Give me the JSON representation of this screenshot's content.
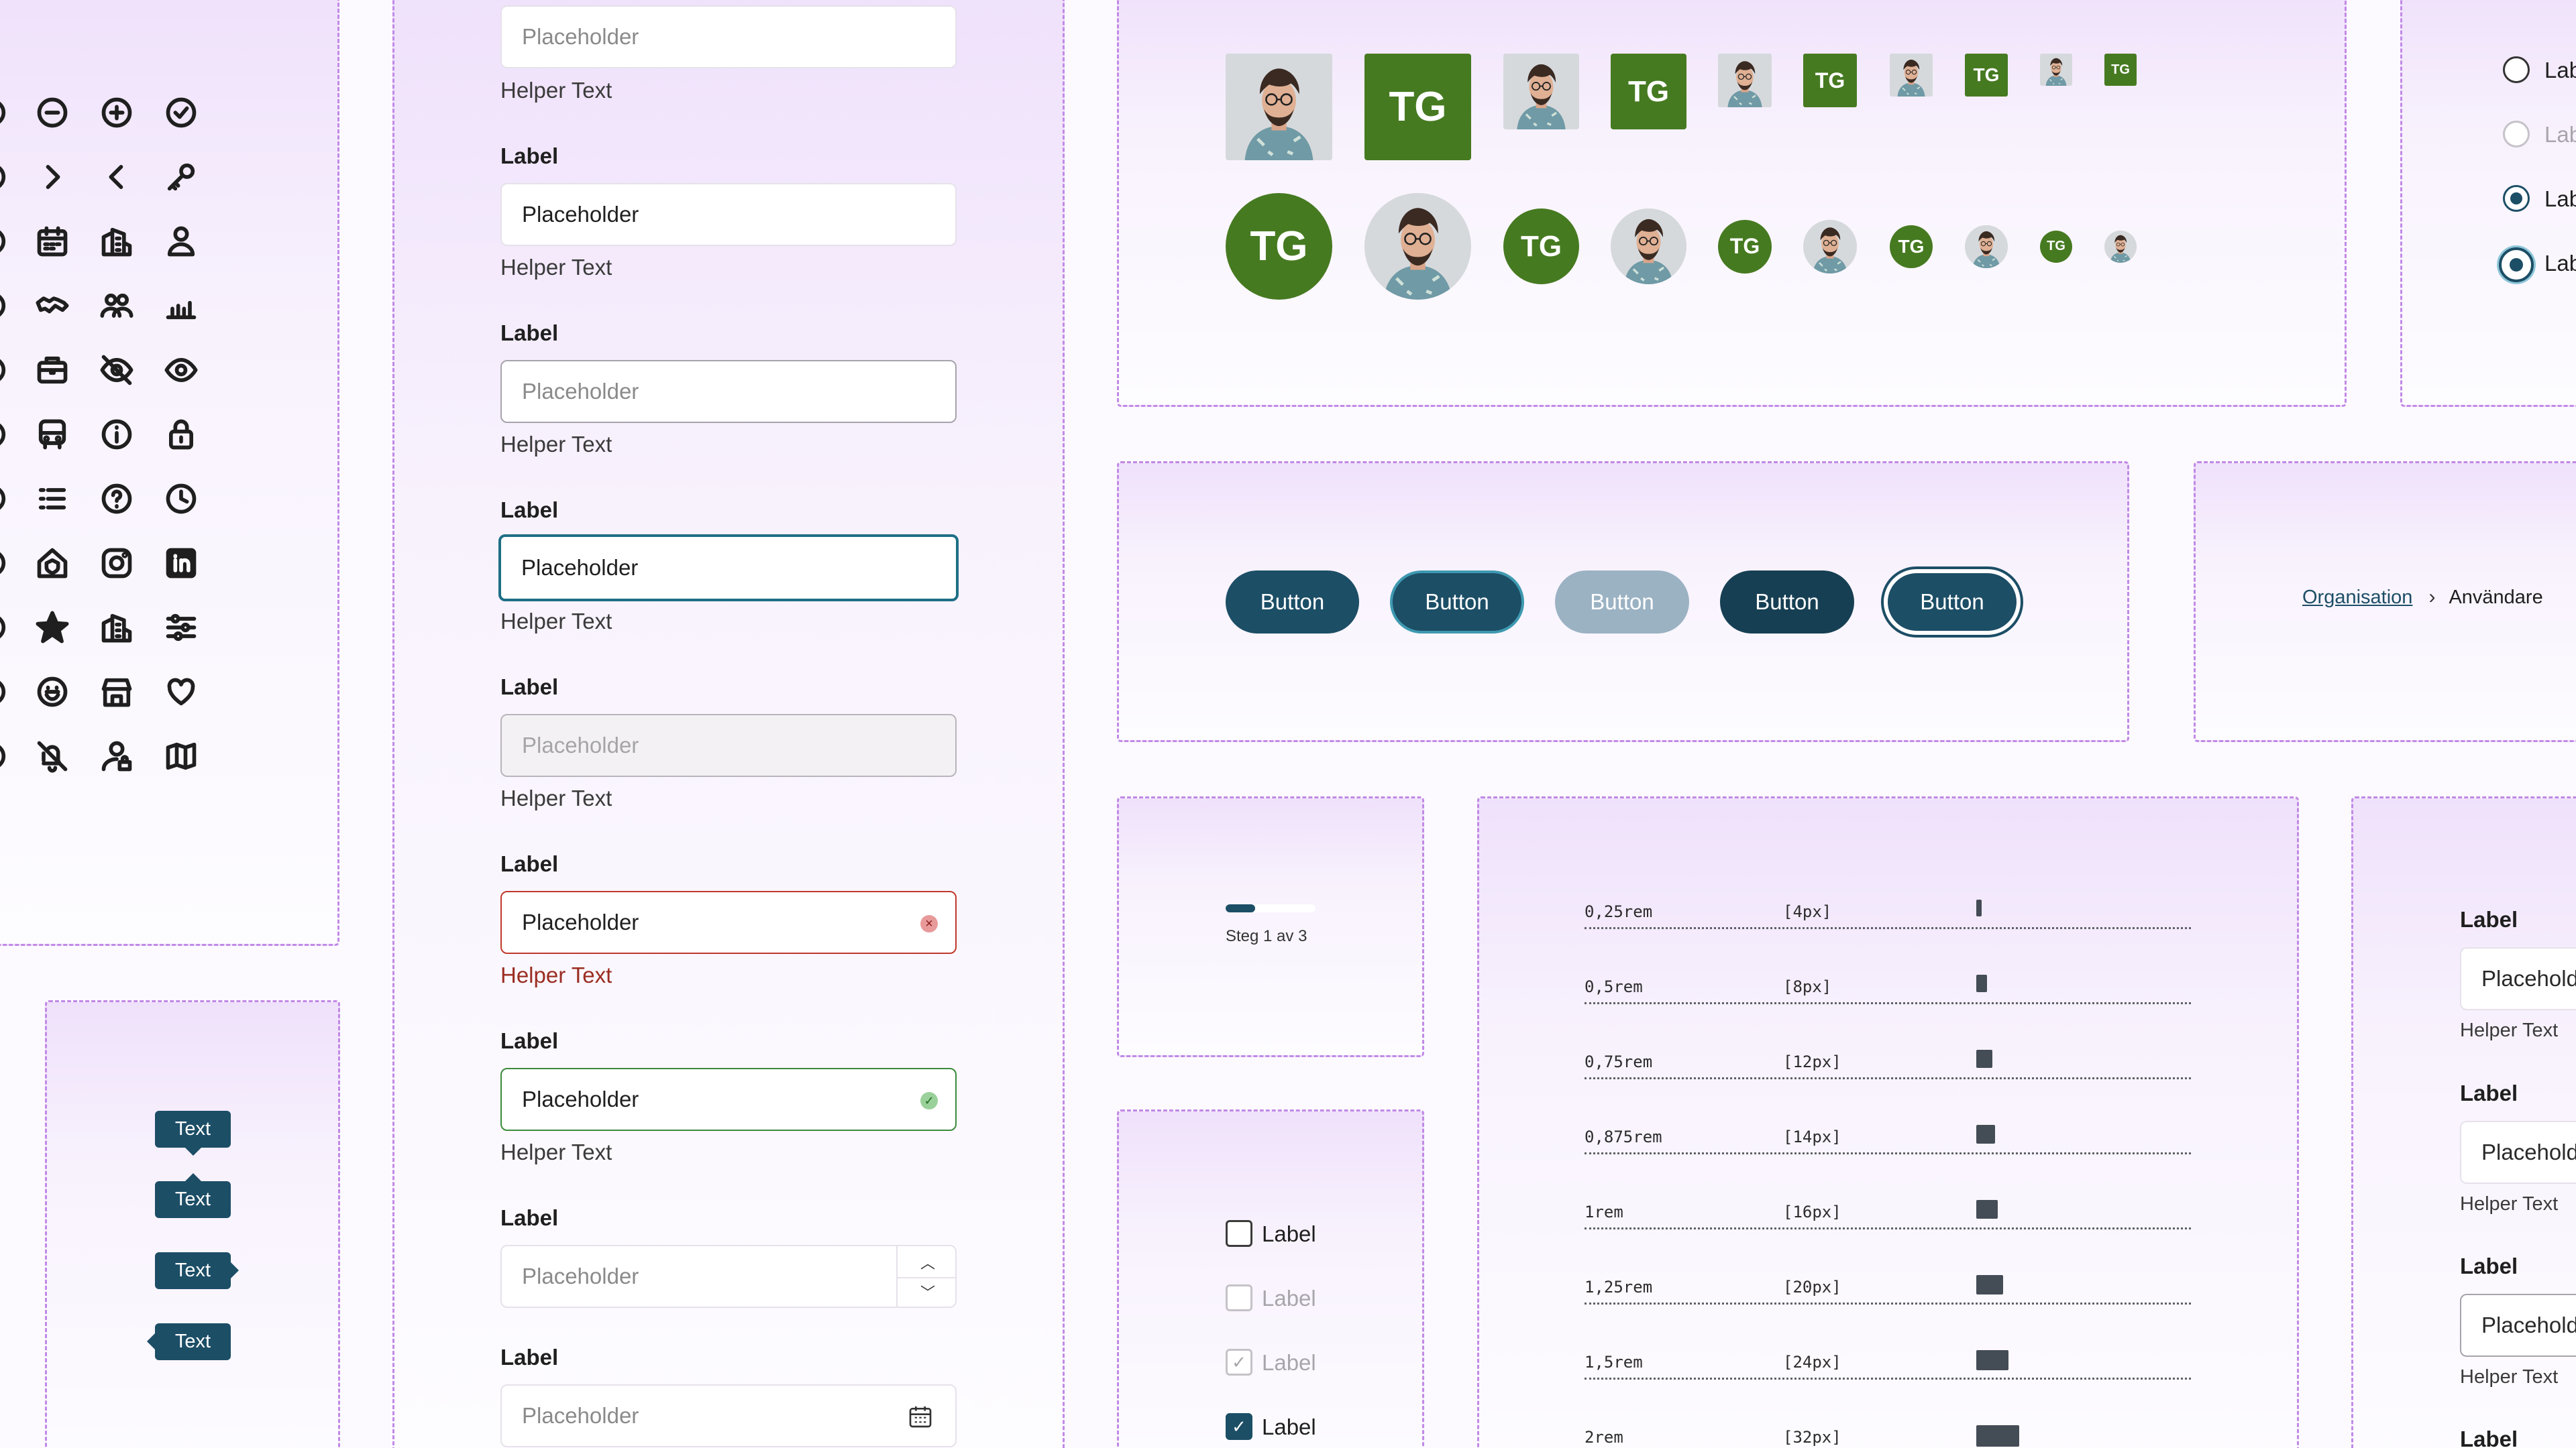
{
  "icons": {
    "grid": [
      [
        "minus-circle-icon",
        "plus-circle-icon",
        "check-circle-icon"
      ],
      [
        "chevron-right-icon",
        "chevron-left-icon",
        "key-icon"
      ],
      [
        "calendar-icon",
        "building-icon",
        "user-icon"
      ],
      [
        "handshake-icon",
        "users-icon",
        "bar-chart-icon"
      ],
      [
        "briefcase-icon",
        "eye-off-icon",
        "eye-icon"
      ],
      [
        "bus-icon",
        "info-icon",
        "lock-icon"
      ],
      [
        "list-icon",
        "help-circle-icon",
        "clock-icon"
      ],
      [
        "house-shield-icon",
        "instagram-icon",
        "linkedin-icon"
      ],
      [
        "star-icon",
        "building-icon",
        "sliders-icon"
      ],
      [
        "smile-icon",
        "store-icon",
        "heart-icon"
      ],
      [
        "bell-off-icon",
        "user-lock-icon",
        "map-icon"
      ]
    ]
  },
  "tooltips": {
    "text": "Text"
  },
  "form_fields": {
    "label": "Label",
    "placeholder": "Placeholder",
    "helper": "Helper Text",
    "error_color": "#c0392b",
    "success_color": "#3b8c3b"
  },
  "avatars": {
    "initials": "TG",
    "color": "#467a21"
  },
  "radios": {
    "label": "Label"
  },
  "buttons": {
    "label": "Button",
    "color": "#1c4e66",
    "disabled_color": "#9bb2c3"
  },
  "breadcrumb": {
    "link": "Organisation",
    "current": "Användare"
  },
  "progress": {
    "text": "Steg 1 av 3",
    "fraction": 0.33
  },
  "spacing": [
    {
      "rem": "0,25rem",
      "px": "[4px]",
      "value": 4
    },
    {
      "rem": "0,5rem",
      "px": "[8px]",
      "value": 8
    },
    {
      "rem": "0,75rem",
      "px": "[12px]",
      "value": 12
    },
    {
      "rem": "0,875rem",
      "px": "[14px]",
      "value": 14
    },
    {
      "rem": "1rem",
      "px": "[16px]",
      "value": 16
    },
    {
      "rem": "1,25rem",
      "px": "[20px]",
      "value": 20
    },
    {
      "rem": "1,5rem",
      "px": "[24px]",
      "value": 24
    },
    {
      "rem": "2rem",
      "px": "[32px]",
      "value": 32
    }
  ],
  "checkboxes": {
    "label": "Label"
  },
  "right_fields": {
    "label": "Label",
    "placeholder": "Placeholder",
    "helper": "Helper Text"
  }
}
